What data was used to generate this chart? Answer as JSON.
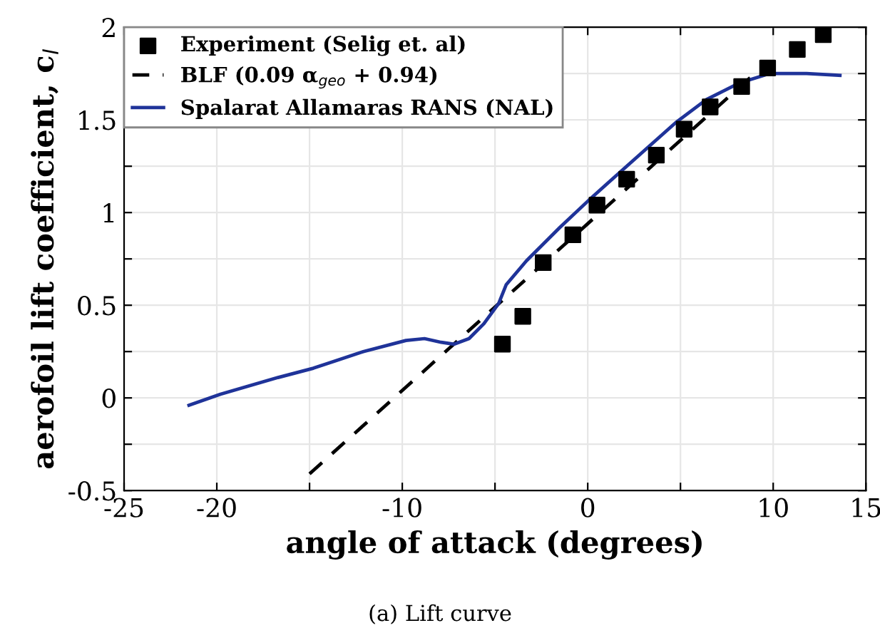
{
  "chart_data": {
    "type": "line",
    "xlabel": "angle of attack (degrees)",
    "ylabel": "aerofoil lift coefficient, c$_{l}$",
    "xlim": [
      -25,
      15
    ],
    "ylim": [
      -0.5,
      2
    ],
    "xticks": [
      -25,
      -20,
      {
        "value": -15,
        "label": null
      },
      -10,
      {
        "value": -5,
        "label": null
      },
      0,
      {
        "value": 5,
        "label": null
      },
      10,
      15
    ],
    "yticks": [
      {
        "value": -0.5,
        "label": "-0.5"
      },
      {
        "value": -0.25,
        "label": null
      },
      0,
      {
        "value": 0.25,
        "label": null
      },
      0.5,
      {
        "value": 0.75,
        "label": null
      },
      1,
      {
        "value": 1.25,
        "label": null
      },
      1.5,
      {
        "value": 1.75,
        "label": null
      },
      2
    ],
    "grid": true,
    "legend": "top left",
    "series": [
      {
        "name": "Experiment (Selig et. al)",
        "type": "scatter",
        "marker": "square",
        "color": "#000000",
        "x": [
          -4.6,
          -3.5,
          -2.4,
          -0.8,
          0.5,
          2.1,
          3.7,
          5.2,
          6.6,
          8.3,
          9.7,
          11.3,
          12.7
        ],
        "values": [
          0.29,
          0.44,
          0.73,
          0.88,
          1.04,
          1.18,
          1.31,
          1.45,
          1.57,
          1.68,
          1.78,
          1.88,
          1.96
        ]
      },
      {
        "name": "BLF (0.09 α$_{geo}$ + 0.94)",
        "line_style": "dashed",
        "color": "#000000",
        "x": [
          -15,
          9
        ],
        "values": [
          -0.41,
          1.75
        ]
      },
      {
        "name": "Spalarat Allamaras RANS (NAL)",
        "line_style": "solid",
        "color": "#1f3399",
        "x": [
          -21.5,
          -19.8,
          -16.7,
          -14.8,
          -12.1,
          -9.8,
          -8.8,
          -7.9,
          -7.2,
          -6.4,
          -5.6,
          -4.8,
          -4.4,
          -3.3,
          -1.5,
          0.2,
          2.1,
          4.8,
          6.4,
          8.2,
          9.8,
          11.8,
          13.6
        ],
        "values": [
          -0.04,
          0.02,
          0.11,
          0.16,
          0.25,
          0.31,
          0.32,
          0.3,
          0.29,
          0.32,
          0.4,
          0.51,
          0.61,
          0.74,
          0.92,
          1.08,
          1.25,
          1.49,
          1.61,
          1.7,
          1.75,
          1.75,
          1.74
        ]
      }
    ],
    "annotations": [
      "(a) Lift curve"
    ]
  }
}
